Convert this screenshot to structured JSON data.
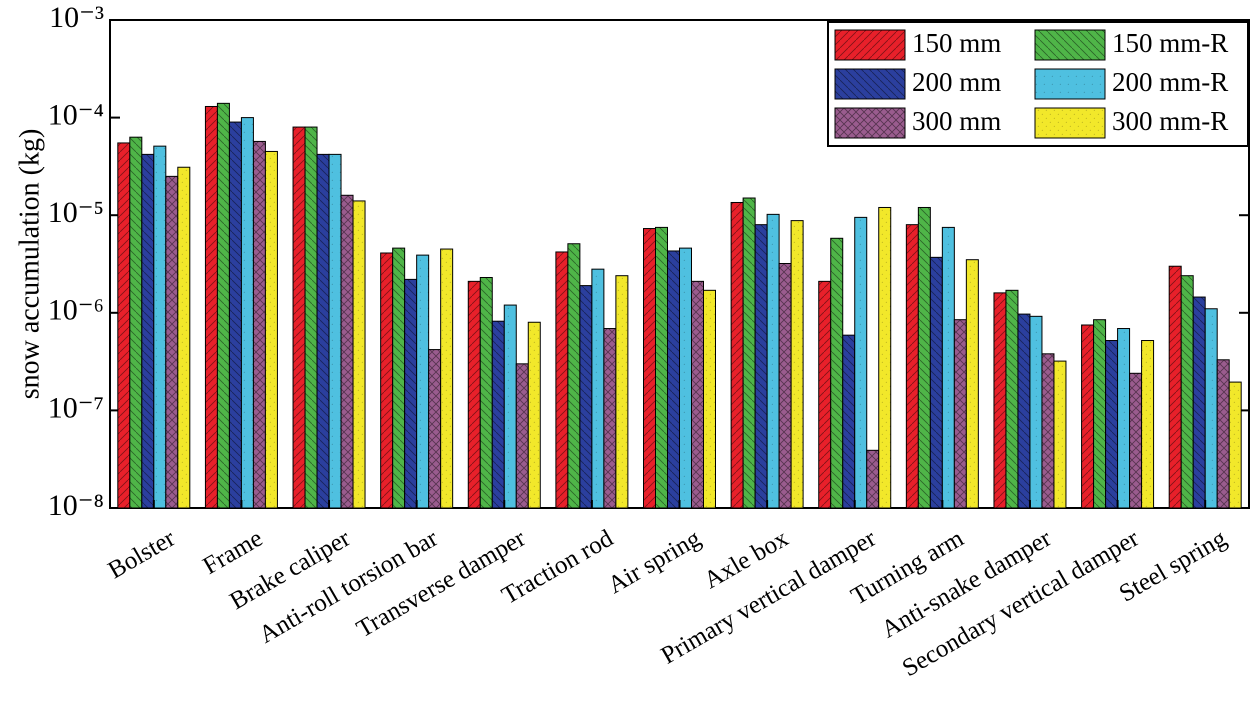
{
  "chart_data": {
    "type": "bar",
    "log_scale": true,
    "ylabel": "snow accumulation (kg)",
    "categories": [
      "Bolster",
      "Frame",
      "Brake caliper",
      "Anti-roll torsion bar",
      "Transverse damper",
      "Traction rod",
      "Air spring",
      "Axle box",
      "Primary vertical damper",
      "Turning arm",
      "Anti-snake damper",
      "Secondary vertical damper",
      "Steel spring"
    ],
    "series": [
      {
        "name": "150 mm",
        "color": "#e8202a",
        "values": [
          5.5e-05,
          0.00013,
          8e-05,
          4.1e-06,
          2.1e-06,
          4.2e-06,
          7.3e-06,
          1.35e-05,
          2.1e-06,
          8e-06,
          1.6e-06,
          7.5e-07,
          3e-06
        ]
      },
      {
        "name": "200 mm",
        "color": "#2b3f9e",
        "values": [
          4.2e-05,
          9e-05,
          4.2e-05,
          2.2e-06,
          8.2e-07,
          1.9e-06,
          4.3e-06,
          8e-06,
          5.9e-07,
          3.7e-06,
          9.7e-07,
          5.2e-07,
          1.45e-06
        ]
      },
      {
        "name": "300 mm",
        "color": "#9a5c8e",
        "values": [
          2.5e-05,
          5.7e-05,
          1.6e-05,
          4.2e-07,
          3e-07,
          6.9e-07,
          2.1e-06,
          3.2e-06,
          3.9e-08,
          8.5e-07,
          3.8e-07,
          2.4e-07,
          3.3e-07
        ]
      },
      {
        "name": "150 mm-R",
        "color": "#4fb548",
        "values": [
          6.3e-05,
          0.00014,
          8e-05,
          4.6e-06,
          2.3e-06,
          5.1e-06,
          7.5e-06,
          1.5e-05,
          5.8e-06,
          1.2e-05,
          1.7e-06,
          8.5e-07,
          2.4e-06
        ]
      },
      {
        "name": "200 mm-R",
        "color": "#4fc0e0",
        "values": [
          5.1e-05,
          0.0001,
          4.2e-05,
          3.9e-06,
          1.2e-06,
          2.8e-06,
          4.6e-06,
          1.02e-05,
          9.5e-06,
          7.5e-06,
          9.2e-07,
          6.9e-07,
          1.1e-06
        ]
      },
      {
        "name": "300 mm-R",
        "color": "#f2e82a",
        "values": [
          3.1e-05,
          4.5e-05,
          1.4e-05,
          4.5e-06,
          8e-07,
          2.4e-06,
          1.7e-06,
          8.8e-06,
          1.2e-05,
          3.5e-06,
          3.2e-07,
          5.2e-07,
          1.95e-07
        ]
      }
    ],
    "bar_order": [
      0,
      3,
      1,
      4,
      2,
      5
    ],
    "ylim": [
      1e-08,
      0.001
    ],
    "yticks": [
      {
        "value": 1e-08,
        "label": "10⁻⁸"
      },
      {
        "value": 1e-07,
        "label": "10⁻⁷"
      },
      {
        "value": 1e-06,
        "label": "10⁻⁶"
      },
      {
        "value": 1e-05,
        "label": "10⁻⁵"
      },
      {
        "value": 0.0001,
        "label": "10⁻⁴"
      },
      {
        "value": 0.001,
        "label": "10⁻³"
      }
    ],
    "legend": "upper right"
  }
}
